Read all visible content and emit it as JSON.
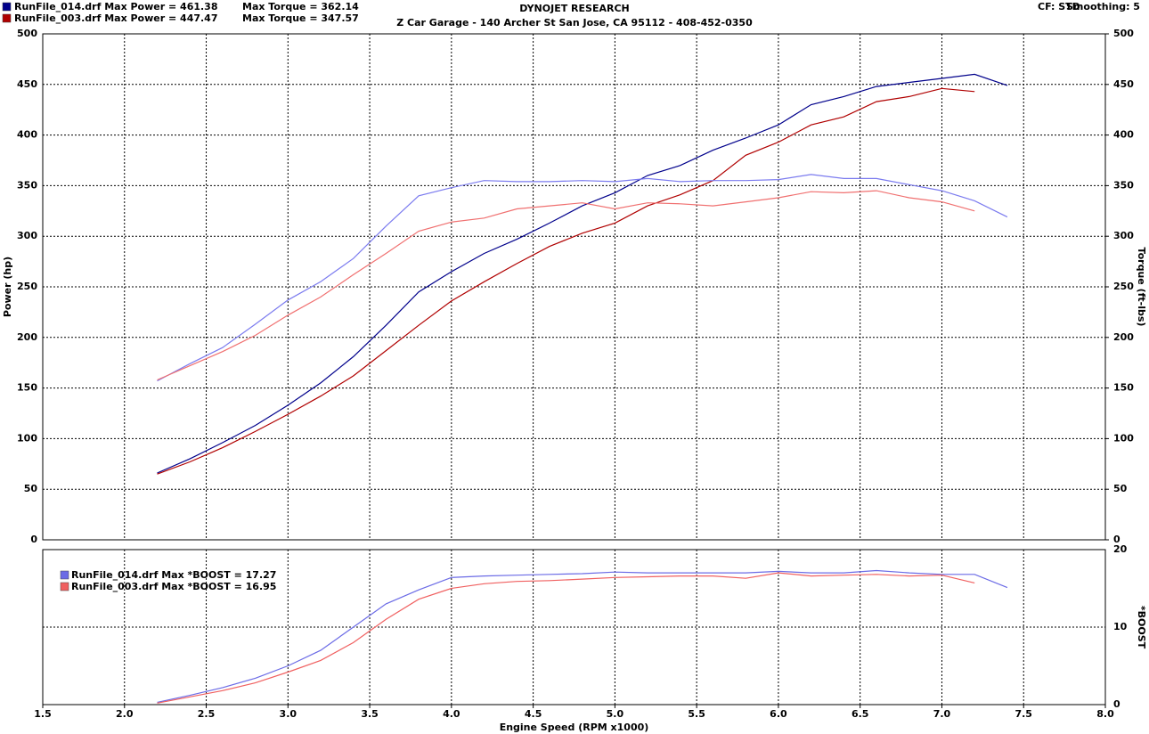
{
  "chart_data": [
    {
      "type": "line",
      "title": "DYNOJET RESEARCH",
      "subtitle": "Z Car Garage - 140 Archer St San Jose, CA 95112 - 408-452-0350",
      "annotations": [
        "CF: STD",
        "Smoothing: 5"
      ],
      "ylabel": "Power (hp)",
      "y2label": "Torque (ft-lbs)",
      "grid": true,
      "xlim": [
        1.5,
        8.0
      ],
      "xticks": [
        1.5,
        2,
        2.5,
        3,
        3.5,
        4,
        4.5,
        5,
        5.5,
        6,
        6.5,
        7,
        7.5,
        8
      ],
      "ylim": [
        0,
        500
      ],
      "yticks": [
        0,
        50,
        100,
        150,
        200,
        250,
        300,
        350,
        400,
        450,
        500
      ],
      "y2lim": [
        0,
        500
      ],
      "y2ticks": [
        0,
        50,
        100,
        150,
        200,
        250,
        300,
        350,
        400,
        450,
        500
      ],
      "x": [
        2.2,
        2.4,
        2.6,
        2.8,
        3.0,
        3.2,
        3.4,
        3.6,
        3.8,
        4.0,
        4.2,
        4.4,
        4.6,
        4.8,
        5.0,
        5.2,
        5.4,
        5.6,
        5.8,
        6.0,
        6.2,
        6.4,
        6.6,
        6.8,
        7.0,
        7.2,
        7.4
      ],
      "series": [
        {
          "name": "RunFile_014.drf Max Power = 461.38",
          "color": "#00008b",
          "values": [
            66,
            80,
            96,
            113,
            133,
            155,
            181,
            212,
            245,
            265,
            283,
            297,
            313,
            330,
            343,
            360,
            370,
            385,
            397,
            410,
            430,
            438,
            448,
            452,
            456,
            460,
            449
          ]
        },
        {
          "name": "RunFile_003.drf Max Power = 447.47",
          "color": "#b00000",
          "values": [
            65,
            77,
            91,
            107,
            124,
            142,
            162,
            187,
            212,
            236,
            255,
            273,
            290,
            303,
            313,
            330,
            341,
            355,
            380,
            393,
            410,
            418,
            433,
            438,
            446,
            443,
            null
          ]
        },
        {
          "name": "Max Torque = 362.14",
          "color": "#7b7bef",
          "axis": "y2",
          "values": [
            157,
            174,
            190,
            213,
            237,
            255,
            278,
            310,
            340,
            348,
            355,
            354,
            354,
            355,
            354,
            357,
            354,
            355,
            355,
            356,
            361,
            357,
            357,
            351,
            345,
            335,
            319
          ]
        },
        {
          "name": "Max Torque = 347.57",
          "color": "#f07070",
          "axis": "y2",
          "values": [
            158,
            172,
            186,
            202,
            222,
            240,
            262,
            283,
            305,
            314,
            318,
            327,
            330,
            333,
            327,
            333,
            332,
            330,
            334,
            338,
            344,
            343,
            345,
            338,
            334,
            325,
            null
          ]
        }
      ]
    },
    {
      "type": "line",
      "ylabel": "*BOOST",
      "xlabel": "Engine Speed (RPM x1000)",
      "grid": true,
      "y_axis_side": "right",
      "xlim": [
        1.5,
        8.0
      ],
      "xticks": [
        {
          "value": 1.5,
          "label": "1.5"
        },
        {
          "value": 2,
          "label": "2.0"
        },
        {
          "value": 2.5,
          "label": "2.5"
        },
        {
          "value": 3,
          "label": "3.0"
        },
        {
          "value": 3.5,
          "label": "3.5"
        },
        {
          "value": 4,
          "label": "4.0"
        },
        {
          "value": 4.5,
          "label": "4.5"
        },
        {
          "value": 5,
          "label": "5.0"
        },
        {
          "value": 5.5,
          "label": "5.5"
        },
        {
          "value": 6,
          "label": "6.0"
        },
        {
          "value": 6.5,
          "label": "6.5"
        },
        {
          "value": 7,
          "label": "7.0"
        },
        {
          "value": 7.5,
          "label": "7.5"
        },
        {
          "value": 8,
          "label": "8.0"
        }
      ],
      "ylim": [
        0,
        20
      ],
      "yticks": [
        0,
        10,
        20
      ],
      "x": [
        2.2,
        2.4,
        2.6,
        2.8,
        3.0,
        3.2,
        3.4,
        3.6,
        3.8,
        4.0,
        4.2,
        4.4,
        4.6,
        4.8,
        5.0,
        5.2,
        5.4,
        5.6,
        5.8,
        6.0,
        6.2,
        6.4,
        6.6,
        6.8,
        7.0,
        7.2,
        7.4
      ],
      "series": [
        {
          "name": "RunFile_014.drf Max *BOOST = 17.27",
          "color": "#6b6be6",
          "values": [
            0.3,
            1.2,
            2.2,
            3.4,
            5.0,
            7.0,
            10.0,
            13.0,
            14.8,
            16.4,
            16.6,
            16.7,
            16.8,
            16.9,
            17.1,
            17.0,
            17.0,
            17.0,
            17.0,
            17.2,
            17.0,
            17.0,
            17.3,
            17.0,
            16.8,
            16.8,
            15.1
          ]
        },
        {
          "name": "RunFile_003.drf Max *BOOST = 16.95",
          "color": "#f06060",
          "values": [
            0.2,
            1.0,
            1.8,
            2.8,
            4.2,
            5.7,
            8.0,
            11.0,
            13.6,
            15.0,
            15.6,
            15.9,
            16.0,
            16.2,
            16.4,
            16.5,
            16.6,
            16.6,
            16.3,
            17.0,
            16.6,
            16.7,
            16.8,
            16.6,
            16.7,
            15.7,
            null
          ]
        }
      ]
    }
  ]
}
